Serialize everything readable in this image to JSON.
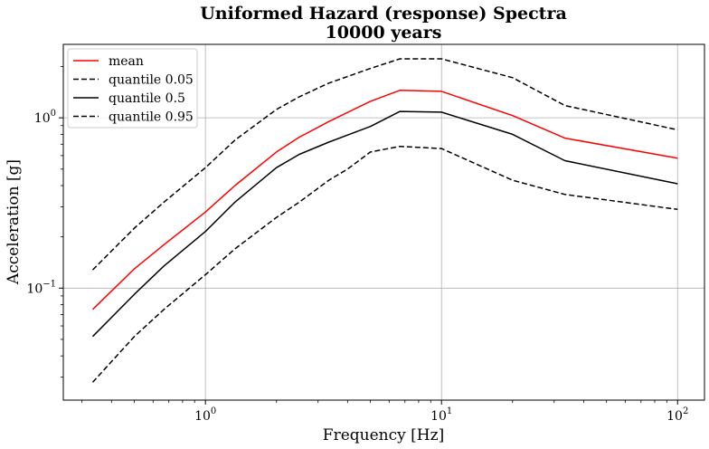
{
  "chart_data": {
    "type": "line",
    "title": "Uniformed Hazard (response) Spectra",
    "subtitle": "10000 years",
    "xlabel": "Frequency [Hz]",
    "ylabel": "Acceleration [g]",
    "xscale": "log",
    "yscale": "log",
    "xlim": [
      0.25,
      130
    ],
    "ylim": [
      0.022,
      2.7
    ],
    "grid": true,
    "legend_position": "top-left",
    "x_ticks": [
      {
        "base": "10",
        "exp": "0",
        "value": 1
      },
      {
        "base": "10",
        "exp": "1",
        "value": 10
      },
      {
        "base": "10",
        "exp": "2",
        "value": 100
      }
    ],
    "y_ticks": [
      {
        "base": "10",
        "exp": "−1",
        "value": 0.1
      },
      {
        "base": "10",
        "exp": "0",
        "value": 1
      }
    ],
    "series": [
      {
        "name": "mean",
        "color": "#ff0000",
        "dash": "solid",
        "x": [
          0.333,
          0.5,
          0.667,
          1.0,
          1.333,
          2.0,
          2.5,
          3.333,
          5.0,
          6.667,
          10.0,
          20.0,
          33.333,
          100.0
        ],
        "y": [
          0.075,
          0.13,
          0.18,
          0.28,
          0.4,
          0.63,
          0.77,
          0.95,
          1.25,
          1.45,
          1.43,
          1.03,
          0.76,
          0.58
        ]
      },
      {
        "name": "quantile 0.05",
        "color": "#000000",
        "dash": "dashed",
        "x": [
          0.333,
          0.5,
          0.667,
          1.0,
          1.333,
          2.0,
          2.5,
          3.333,
          5.0,
          6.667,
          10.0,
          20.0,
          33.333,
          100.0
        ],
        "y": [
          0.128,
          0.225,
          0.32,
          0.51,
          0.74,
          1.12,
          1.33,
          1.6,
          1.95,
          2.22,
          2.22,
          1.72,
          1.18,
          0.85
        ]
      },
      {
        "name": "quantile 0.5",
        "color": "#000000",
        "dash": "solid",
        "x": [
          0.333,
          0.5,
          0.667,
          1.0,
          1.333,
          2.0,
          2.5,
          3.333,
          5.0,
          6.667,
          10.0,
          20.0,
          33.333,
          100.0
        ],
        "y": [
          0.052,
          0.092,
          0.135,
          0.215,
          0.32,
          0.51,
          0.61,
          0.72,
          0.89,
          1.09,
          1.08,
          0.8,
          0.56,
          0.41
        ]
      },
      {
        "name": "quantile 0.95",
        "color": "#000000",
        "dash": "dashed",
        "x": [
          0.333,
          0.5,
          0.667,
          1.0,
          1.333,
          2.0,
          2.5,
          3.333,
          4.0,
          5.0,
          6.667,
          10.0,
          20.0,
          33.333,
          100.0
        ],
        "y": [
          0.028,
          0.052,
          0.075,
          0.12,
          0.17,
          0.26,
          0.32,
          0.43,
          0.5,
          0.63,
          0.68,
          0.66,
          0.43,
          0.355,
          0.29
        ]
      }
    ]
  }
}
